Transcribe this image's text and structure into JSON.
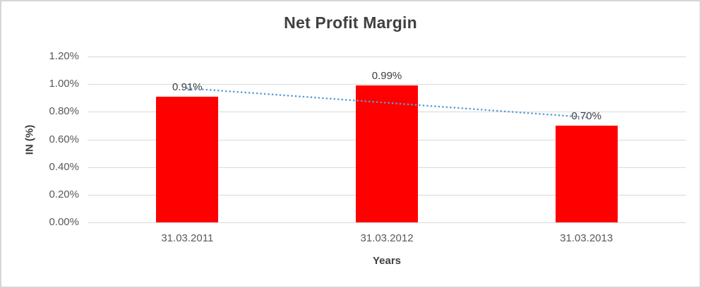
{
  "chart_data": {
    "type": "bar",
    "title": "Net Profit Margin",
    "xlabel": "Years",
    "ylabel": "IN (%)",
    "categories": [
      "31.03.2011",
      "31.03.2012",
      "31.03.2013"
    ],
    "values": [
      0.91,
      0.99,
      0.7
    ],
    "data_labels": [
      "0.91%",
      "0.99%",
      "0.70%"
    ],
    "ylim": [
      0,
      1.2
    ],
    "ytick_step": 0.2,
    "yticks": [
      "0.00%",
      "0.20%",
      "0.40%",
      "0.60%",
      "0.80%",
      "1.00%",
      "1.20%"
    ],
    "grid": true,
    "legend_position": "none",
    "bar_color": "#FF0000",
    "trendline": {
      "type": "linear",
      "style": "dotted",
      "color": "#5B9BD5",
      "start_value": 0.97,
      "end_value": 0.76
    }
  },
  "colors": {
    "gridline": "#d9d9d9",
    "tick_text": "#595959",
    "title_text": "#404040",
    "frame_border": "#d6d6d6",
    "background": "#ffffff"
  }
}
